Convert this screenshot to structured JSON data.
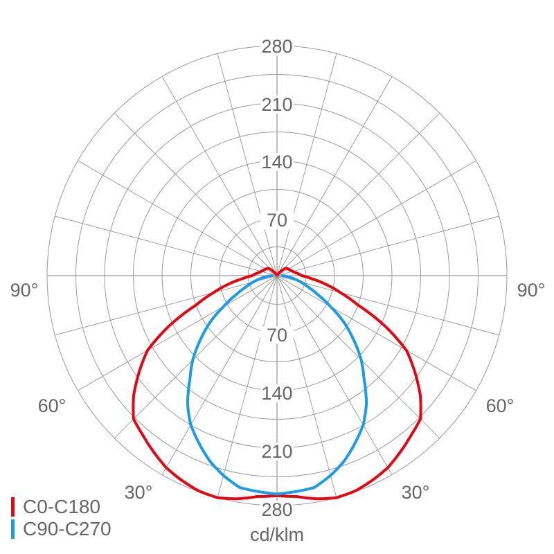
{
  "chart_data": {
    "type": "polar",
    "unit": "cd/klm",
    "r_ticks": [
      70,
      140,
      210,
      280
    ],
    "r_max": 280,
    "angle_labels": [
      "90°",
      "60°",
      "30°"
    ],
    "grid": true,
    "legend_position": "bottom-left",
    "series": [
      {
        "name": "C0-C180",
        "color": "#e30613",
        "angles": [
          0,
          5,
          10,
          15,
          20,
          25,
          30,
          35,
          40,
          45,
          50,
          55,
          60,
          65,
          70,
          75,
          80,
          85,
          90,
          100,
          110,
          120,
          130,
          140,
          150,
          180
        ],
        "values": [
          268,
          270,
          276,
          280,
          279,
          275,
          270,
          262,
          254,
          247,
          228,
          205,
          182,
          145,
          105,
          80,
          60,
          42,
          30,
          22,
          18,
          16,
          14,
          6,
          0,
          0
        ]
      },
      {
        "name": "C90-C270",
        "color": "#1a9be6",
        "angles": [
          0,
          10,
          15,
          20,
          25,
          30,
          35,
          40,
          45,
          50,
          55,
          60,
          65,
          70,
          80,
          90
        ],
        "values": [
          266,
          262,
          252,
          240,
          225,
          210,
          190,
          165,
          145,
          122,
          100,
          75,
          55,
          40,
          20,
          5
        ]
      }
    ]
  }
}
